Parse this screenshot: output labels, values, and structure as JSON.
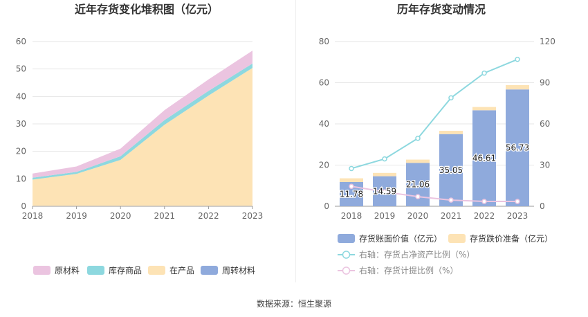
{
  "footer": {
    "source": "数据来源：恒生聚源"
  },
  "chart_data": [
    {
      "type": "area",
      "stacked": true,
      "title": "近年存货变化堆积图（亿元）",
      "categories": [
        "2018",
        "2019",
        "2020",
        "2021",
        "2022",
        "2023"
      ],
      "ylim": [
        0,
        60
      ],
      "yticks": [
        0,
        10,
        20,
        30,
        40,
        50,
        60
      ],
      "legend_position": "bottom",
      "series": [
        {
          "name": "周转材料",
          "color": "#8faadc",
          "values": [
            0.1,
            0.1,
            0.1,
            0.1,
            0.1,
            0.1
          ]
        },
        {
          "name": "在产品",
          "color": "#fde3b5",
          "values": [
            9.6,
            11.7,
            16.8,
            29.6,
            40.2,
            50.3
          ]
        },
        {
          "name": "库存商品",
          "color": "#8dd8df",
          "values": [
            0.7,
            0.7,
            1.3,
            1.7,
            1.7,
            1.6
          ]
        },
        {
          "name": "原材料",
          "color": "#ebc4e0",
          "values": [
            1.5,
            2.0,
            2.8,
            3.6,
            4.2,
            4.7
          ]
        }
      ]
    },
    {
      "type": "bar",
      "stacked": true,
      "title": "历年存货变动情况",
      "categories": [
        "2018",
        "2019",
        "2020",
        "2021",
        "2022",
        "2023"
      ],
      "ylim": [
        0,
        80
      ],
      "yticks": [
        0,
        20,
        40,
        60,
        80
      ],
      "y2lim": [
        0,
        120
      ],
      "y2ticks": [
        0,
        30,
        60,
        90,
        120
      ],
      "legend_position": "bottom",
      "series": [
        {
          "name": "存货账面价值（亿元）",
          "color": "#8faadc",
          "axis": "left",
          "values": [
            11.78,
            14.59,
            21.06,
            35.05,
            46.61,
            56.73
          ],
          "labels": [
            "11.78",
            "14.59",
            "21.06",
            "35.05",
            "46.61",
            "56.73"
          ]
        },
        {
          "name": "存货跌价准备（亿元）",
          "color": "#fde3b5",
          "axis": "left",
          "values": [
            1.8,
            1.6,
            1.6,
            1.6,
            1.6,
            2.1
          ]
        },
        {
          "type": "line",
          "name": "右轴：存货占净资产比例（%）",
          "color": "#8dd8df",
          "axis": "right",
          "values": [
            27.5,
            34.5,
            49.5,
            79,
            97,
            107
          ]
        },
        {
          "type": "line",
          "name": "右轴：存货计提比例（%）",
          "color": "#ebc4e0",
          "axis": "right",
          "values": [
            14.5,
            10.5,
            7.0,
            4.5,
            3.5,
            3.5
          ]
        }
      ]
    }
  ]
}
